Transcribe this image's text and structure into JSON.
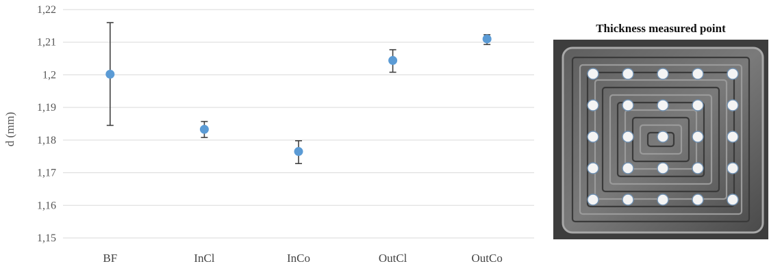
{
  "chart_data": {
    "type": "scatter",
    "categories": [
      "BF",
      "InCl",
      "InCo",
      "OutCl",
      "OutCo"
    ],
    "values": [
      1.2002,
      1.1833,
      1.1765,
      1.2044,
      1.211
    ],
    "error_low": [
      1.1845,
      1.1808,
      1.1728,
      1.2008,
      1.2093
    ],
    "error_high": [
      1.216,
      1.1857,
      1.1798,
      1.2077,
      1.2123
    ],
    "ylim": [
      1.15,
      1.22
    ],
    "yticks": [
      "1,15",
      "1,16",
      "1,17",
      "1,18",
      "1,19",
      "1,2",
      "1,21",
      "1,22"
    ],
    "ylabel": "d (mm)",
    "xlabel": "",
    "grid": true,
    "marker_color": "#5b9bd5",
    "error_color": "#404040"
  },
  "photo": {
    "title": "Thickness measured point",
    "description_icon": "machined-square-sample-photo",
    "rows": 5,
    "cols": 5
  }
}
